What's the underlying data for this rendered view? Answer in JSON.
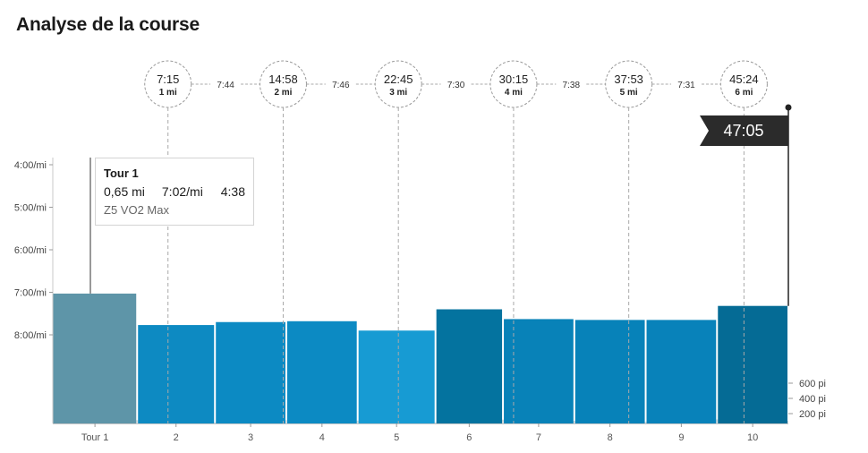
{
  "page": {
    "title": "Analyse de la course"
  },
  "chart_data": {
    "type": "bar",
    "pace_axis": {
      "ticks": [
        "4:00/mi",
        "5:00/mi",
        "6:00/mi",
        "7:00/mi",
        "8:00/mi"
      ],
      "tick_values_min_per_mi": [
        4,
        5,
        6,
        7,
        8
      ],
      "range": [
        3.83,
        10.0
      ]
    },
    "elevation_axis": {
      "ticks": [
        "600 pi",
        "400 pi",
        "200 pi"
      ],
      "tick_values": [
        600,
        400,
        200
      ]
    },
    "categories": [
      "Tour 1",
      "2",
      "3",
      "4",
      "5",
      "6",
      "7",
      "8",
      "9",
      "10"
    ],
    "laps": [
      {
        "label": "Tour 1",
        "distance_mi": 0.65,
        "pace_min": 7.03,
        "color": "#5e95a8"
      },
      {
        "label": "2",
        "distance_mi": 0.6,
        "pace_min": 7.77,
        "color": "#0d8ac2"
      },
      {
        "label": "3",
        "distance_mi": 0.55,
        "pace_min": 7.7,
        "color": "#0c8ac3"
      },
      {
        "label": "4",
        "distance_mi": 0.55,
        "pace_min": 7.68,
        "color": "#0c8ac3"
      },
      {
        "label": "5",
        "distance_mi": 0.6,
        "pace_min": 7.9,
        "color": "#179bd3"
      },
      {
        "label": "6",
        "distance_mi": 0.52,
        "pace_min": 7.4,
        "color": "#04739f"
      },
      {
        "label": "7",
        "distance_mi": 0.55,
        "pace_min": 7.63,
        "color": "#0882b8"
      },
      {
        "label": "8",
        "distance_mi": 0.55,
        "pace_min": 7.65,
        "color": "#0782b9"
      },
      {
        "label": "9",
        "distance_mi": 0.55,
        "pace_min": 7.65,
        "color": "#0882ba"
      },
      {
        "label": "10",
        "distance_mi": 0.55,
        "pace_min": 7.32,
        "color": "#056b95"
      }
    ],
    "elevation_color": "#cfd6d8",
    "mile_markers": [
      {
        "time": "7:15",
        "label": "1 mi",
        "distance_mi": 1
      },
      {
        "time": "14:58",
        "label": "2 mi",
        "distance_mi": 2
      },
      {
        "time": "22:45",
        "label": "3 mi",
        "distance_mi": 3
      },
      {
        "time": "30:15",
        "label": "4 mi",
        "distance_mi": 4
      },
      {
        "time": "37:53",
        "label": "5 mi",
        "distance_mi": 5
      },
      {
        "time": "45:24",
        "label": "6 mi",
        "distance_mi": 6
      }
    ],
    "split_paces": [
      "7:44",
      "7:46",
      "7:30",
      "7:38",
      "7:31"
    ],
    "finish": {
      "time": "47:05"
    },
    "tooltip": {
      "title": "Tour 1",
      "distance": "0,65 mi",
      "pace": "7:02/mi",
      "time": "4:38",
      "zone": "Z5 VO2 Max"
    }
  }
}
